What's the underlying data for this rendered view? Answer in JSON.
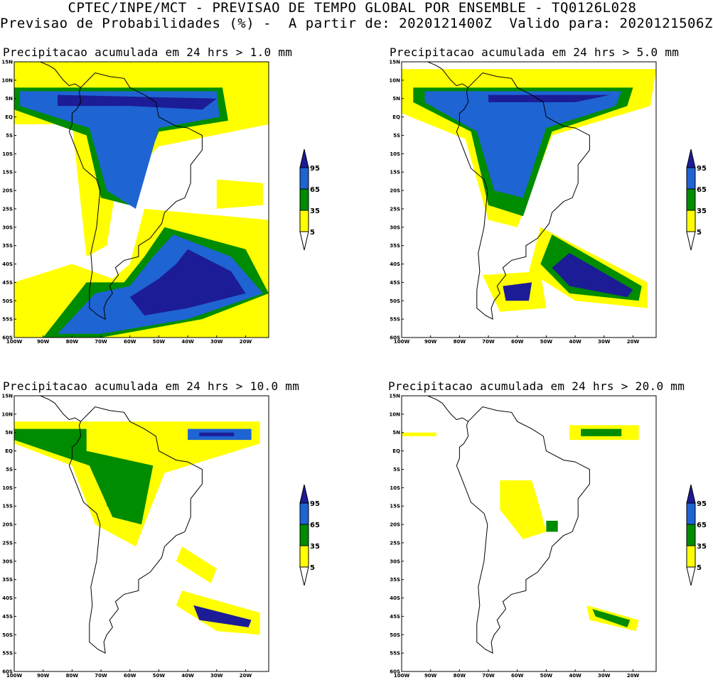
{
  "header": {
    "line1": "CPTEC/INPE/MCT - PREVISAO DE TEMPO GLOBAL POR ENSEMBLE - TQ0126L028",
    "line2": "Previsao de Probabilidades (%) -  A partir de: 2020121400Z  Valido para: 2020121506Z"
  },
  "axes": {
    "lat_labels": [
      "15N",
      "10N",
      "5N",
      "EQ",
      "5S",
      "10S",
      "15S",
      "20S",
      "25S",
      "30S",
      "35S",
      "40S",
      "45S",
      "50S",
      "55S",
      "60S"
    ],
    "lon_labels": [
      "100W",
      "90W",
      "80W",
      "70W",
      "60W",
      "50W",
      "40W",
      "30W",
      "20W"
    ]
  },
  "colorbar": {
    "levels": [
      "5",
      "35",
      "65",
      "95"
    ],
    "colors": {
      "lt5": "#ffffff",
      "p5_35": "#ffff00",
      "p35_65": "#008c00",
      "p65_95": "#1e64d2",
      "gt95": "#1c1c96"
    }
  },
  "panels": [
    {
      "title": "Precipitacao acumulada em 24 hrs > 1.0 mm",
      "threshold_mm": 1.0
    },
    {
      "title": "Precipitacao acumulada em 24 hrs > 5.0 mm",
      "threshold_mm": 5.0
    },
    {
      "title": "Precipitacao acumulada em 24 hrs > 10.0 mm",
      "threshold_mm": 10.0
    },
    {
      "title": "Precipitacao acumulada em 24 hrs > 20.0 mm",
      "threshold_mm": 20.0
    }
  ]
}
